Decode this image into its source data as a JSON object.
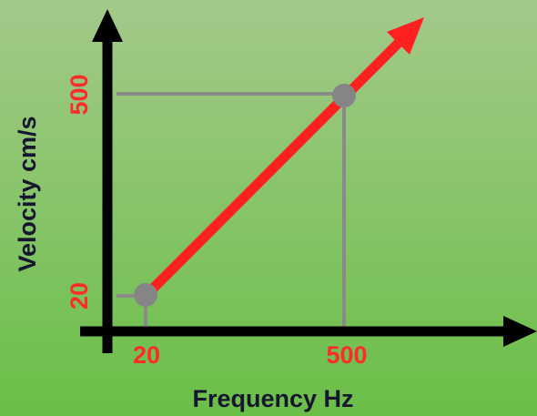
{
  "x_axis": {
    "label": "Frequency Hz",
    "ticks": [
      "20",
      "500"
    ]
  },
  "y_axis": {
    "label": "Velocity cm/s",
    "ticks": [
      "20",
      "500"
    ]
  }
}
